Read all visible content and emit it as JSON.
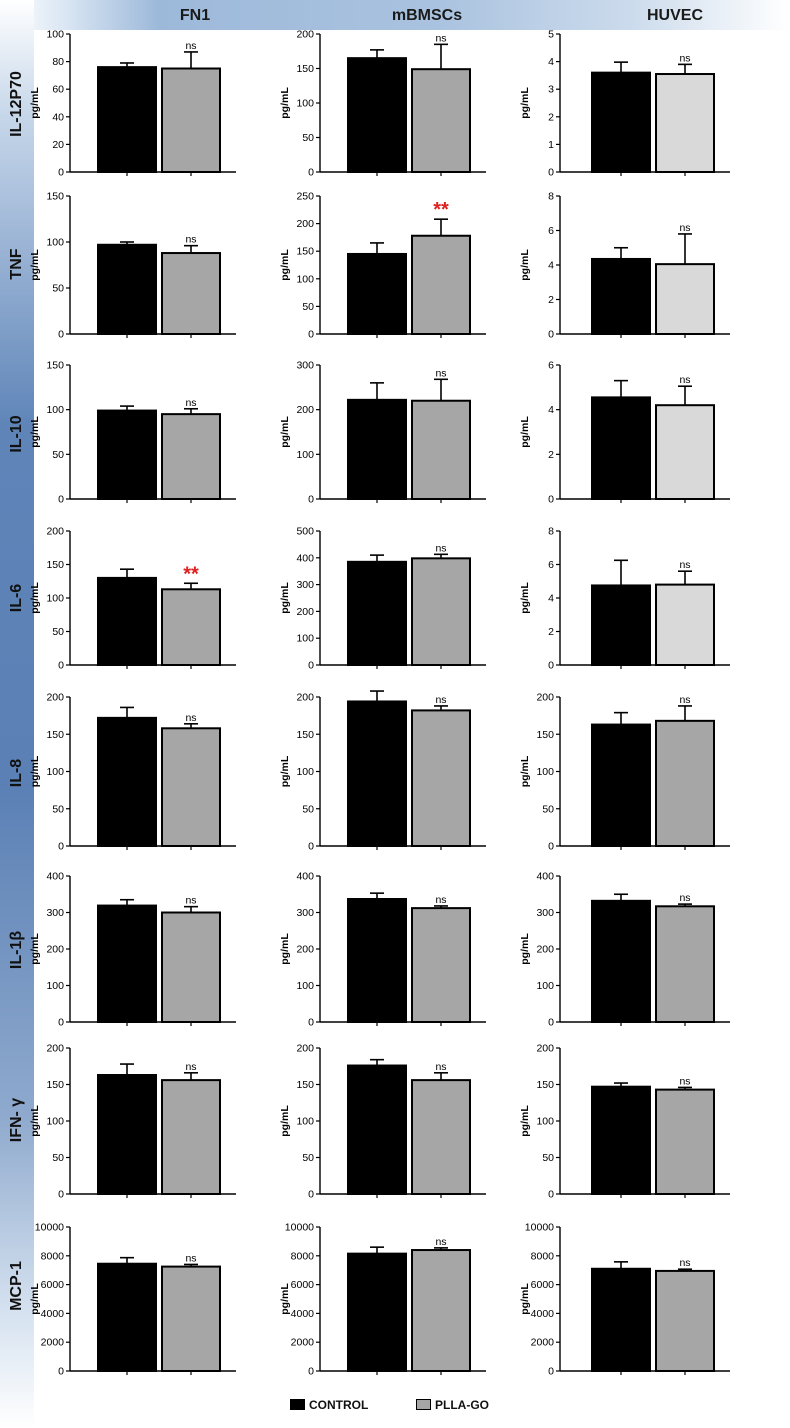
{
  "columns": [
    "FN1",
    "mBMSCs",
    "HUVEC"
  ],
  "rows": [
    "IL-12P70",
    "TNF",
    "IL-10",
    "IL-6",
    "IL-8",
    "IL-1β",
    "IFN- γ",
    "MCP-1"
  ],
  "ylabel": "pg/mL",
  "legend": {
    "control_label": "CONTROL",
    "control_color": "#000000",
    "pllago_label": "PLLA-GO",
    "pllago_color": "#a6a6a6",
    "pllago_color_light": "#d9d9d9"
  },
  "chart_data": [
    {
      "type": "bar",
      "row": "IL-12P70",
      "column": "FN1",
      "categories": [
        "CONTROL",
        "PLLA-GO"
      ],
      "values": [
        76,
        75
      ],
      "errors": [
        3,
        12
      ],
      "ylim": [
        0,
        100
      ],
      "yticks": [
        0,
        20,
        40,
        60,
        80,
        100
      ],
      "ylabel": "pg/mL",
      "annotation": "ns"
    },
    {
      "type": "bar",
      "row": "IL-12P70",
      "column": "mBMSCs",
      "categories": [
        "CONTROL",
        "PLLA-GO"
      ],
      "values": [
        165,
        149
      ],
      "errors": [
        12,
        36
      ],
      "ylim": [
        0,
        200
      ],
      "yticks": [
        0,
        50,
        100,
        150,
        200
      ],
      "ylabel": "pg/mL",
      "annotation": "ns"
    },
    {
      "type": "bar",
      "row": "IL-12P70",
      "column": "HUVEC",
      "categories": [
        "CONTROL",
        "PLLA-GO"
      ],
      "values": [
        3.6,
        3.55
      ],
      "errors": [
        0.38,
        0.35
      ],
      "ylim": [
        0,
        5
      ],
      "yticks": [
        0,
        1,
        2,
        3,
        4,
        5
      ],
      "ylabel": "pg/mL",
      "annotation": "ns"
    },
    {
      "type": "bar",
      "row": "TNF",
      "column": "FN1",
      "categories": [
        "CONTROL",
        "PLLA-GO"
      ],
      "values": [
        97,
        88
      ],
      "errors": [
        3,
        8
      ],
      "ylim": [
        0,
        150
      ],
      "yticks": [
        0,
        50,
        100,
        150
      ],
      "ylabel": "pg/mL",
      "annotation": "ns"
    },
    {
      "type": "bar",
      "row": "TNF",
      "column": "mBMSCs",
      "categories": [
        "CONTROL",
        "PLLA-GO"
      ],
      "values": [
        145,
        178
      ],
      "errors": [
        20,
        30
      ],
      "ylim": [
        0,
        250
      ],
      "yticks": [
        0,
        50,
        100,
        150,
        200,
        250
      ],
      "ylabel": "pg/mL",
      "annotation": "**"
    },
    {
      "type": "bar",
      "row": "TNF",
      "column": "HUVEC",
      "categories": [
        "CONTROL",
        "PLLA-GO"
      ],
      "values": [
        4.35,
        4.05
      ],
      "errors": [
        0.65,
        1.75
      ],
      "ylim": [
        0,
        8
      ],
      "yticks": [
        0,
        2,
        4,
        6,
        8
      ],
      "ylabel": "pg/mL",
      "annotation": "ns"
    },
    {
      "type": "bar",
      "row": "IL-10",
      "column": "FN1",
      "categories": [
        "CONTROL",
        "PLLA-GO"
      ],
      "values": [
        99,
        95
      ],
      "errors": [
        5,
        6
      ],
      "ylim": [
        0,
        150
      ],
      "yticks": [
        0,
        50,
        100,
        150
      ],
      "ylabel": "pg/mL",
      "annotation": "ns"
    },
    {
      "type": "bar",
      "row": "IL-10",
      "column": "mBMSCs",
      "categories": [
        "CONTROL",
        "PLLA-GO"
      ],
      "values": [
        222,
        220
      ],
      "errors": [
        38,
        48
      ],
      "ylim": [
        0,
        300
      ],
      "yticks": [
        0,
        100,
        200,
        300
      ],
      "ylabel": "pg/mL",
      "annotation": "ns"
    },
    {
      "type": "bar",
      "row": "IL-10",
      "column": "HUVEC",
      "categories": [
        "CONTROL",
        "PLLA-GO"
      ],
      "values": [
        4.55,
        4.2
      ],
      "errors": [
        0.75,
        0.85
      ],
      "ylim": [
        0,
        6
      ],
      "yticks": [
        0,
        2,
        4,
        6
      ],
      "ylabel": "pg/mL",
      "annotation": "ns"
    },
    {
      "type": "bar",
      "row": "IL-6",
      "column": "FN1",
      "categories": [
        "CONTROL",
        "PLLA-GO"
      ],
      "values": [
        130,
        113
      ],
      "errors": [
        13,
        9
      ],
      "ylim": [
        0,
        200
      ],
      "yticks": [
        0,
        50,
        100,
        150,
        200
      ],
      "ylabel": "pg/mL",
      "annotation": "**"
    },
    {
      "type": "bar",
      "row": "IL-6",
      "column": "mBMSCs",
      "categories": [
        "CONTROL",
        "PLLA-GO"
      ],
      "values": [
        385,
        398
      ],
      "errors": [
        25,
        15
      ],
      "ylim": [
        0,
        500
      ],
      "yticks": [
        0,
        100,
        200,
        300,
        400,
        500
      ],
      "ylabel": "pg/mL",
      "annotation": "ns"
    },
    {
      "type": "bar",
      "row": "IL-6",
      "column": "HUVEC",
      "categories": [
        "CONTROL",
        "PLLA-GO"
      ],
      "values": [
        4.75,
        4.8
      ],
      "errors": [
        1.5,
        0.8
      ],
      "ylim": [
        0,
        8
      ],
      "yticks": [
        0,
        2,
        4,
        6,
        8
      ],
      "ylabel": "pg/mL",
      "annotation": "ns"
    },
    {
      "type": "bar",
      "row": "IL-8",
      "column": "FN1",
      "categories": [
        "CONTROL",
        "PLLA-GO"
      ],
      "values": [
        172,
        158
      ],
      "errors": [
        14,
        6
      ],
      "ylim": [
        0,
        200
      ],
      "yticks": [
        0,
        50,
        100,
        150,
        200
      ],
      "ylabel": "pg/mL",
      "annotation": "ns"
    },
    {
      "type": "bar",
      "row": "IL-8",
      "column": "mBMSCs",
      "categories": [
        "CONTROL",
        "PLLA-GO"
      ],
      "values": [
        194,
        182
      ],
      "errors": [
        14,
        6
      ],
      "ylim": [
        0,
        200
      ],
      "yticks": [
        0,
        50,
        100,
        150,
        200
      ],
      "ylabel": "pg/mL",
      "annotation": "ns"
    },
    {
      "type": "bar",
      "row": "IL-8",
      "column": "HUVEC",
      "categories": [
        "CONTROL",
        "PLLA-GO"
      ],
      "values": [
        163,
        168
      ],
      "errors": [
        16,
        20
      ],
      "ylim": [
        0,
        200
      ],
      "yticks": [
        0,
        50,
        100,
        150,
        200
      ],
      "ylabel": "pg/mL",
      "annotation": "ns"
    },
    {
      "type": "bar",
      "row": "IL-1β",
      "column": "FN1",
      "categories": [
        "CONTROL",
        "PLLA-GO"
      ],
      "values": [
        319,
        300
      ],
      "errors": [
        16,
        16
      ],
      "ylim": [
        0,
        400
      ],
      "yticks": [
        0,
        100,
        200,
        300,
        400
      ],
      "ylabel": "pg/mL",
      "annotation": "ns"
    },
    {
      "type": "bar",
      "row": "IL-1β",
      "column": "mBMSCs",
      "categories": [
        "CONTROL",
        "PLLA-GO"
      ],
      "values": [
        337,
        312
      ],
      "errors": [
        16,
        6
      ],
      "ylim": [
        0,
        400
      ],
      "yticks": [
        0,
        100,
        200,
        300,
        400
      ],
      "ylabel": "pg/mL",
      "annotation": "ns"
    },
    {
      "type": "bar",
      "row": "IL-1β",
      "column": "HUVEC",
      "categories": [
        "CONTROL",
        "PLLA-GO"
      ],
      "values": [
        332,
        317
      ],
      "errors": [
        18,
        6
      ],
      "ylim": [
        0,
        400
      ],
      "yticks": [
        0,
        100,
        200,
        300,
        400
      ],
      "ylabel": "pg/mL",
      "annotation": "ns"
    },
    {
      "type": "bar",
      "row": "IFN- γ",
      "column": "FN1",
      "categories": [
        "CONTROL",
        "PLLA-GO"
      ],
      "values": [
        163,
        156
      ],
      "errors": [
        15,
        10
      ],
      "ylim": [
        0,
        200
      ],
      "yticks": [
        0,
        50,
        100,
        150,
        200
      ],
      "ylabel": "pg/mL",
      "annotation": "ns"
    },
    {
      "type": "bar",
      "row": "IFN- γ",
      "column": "mBMSCs",
      "categories": [
        "CONTROL",
        "PLLA-GO"
      ],
      "values": [
        176,
        156
      ],
      "errors": [
        8,
        10
      ],
      "ylim": [
        0,
        200
      ],
      "yticks": [
        0,
        50,
        100,
        150,
        200
      ],
      "ylabel": "pg/mL",
      "annotation": "ns"
    },
    {
      "type": "bar",
      "row": "IFN- γ",
      "column": "HUVEC",
      "categories": [
        "CONTROL",
        "PLLA-GO"
      ],
      "values": [
        147,
        143
      ],
      "errors": [
        5,
        3
      ],
      "ylim": [
        0,
        200
      ],
      "yticks": [
        0,
        50,
        100,
        150,
        200
      ],
      "ylabel": "pg/mL",
      "annotation": "ns"
    },
    {
      "type": "bar",
      "row": "MCP-1",
      "column": "FN1",
      "categories": [
        "CONTROL",
        "PLLA-GO"
      ],
      "values": [
        7450,
        7250
      ],
      "errors": [
        420,
        150
      ],
      "ylim": [
        0,
        10000
      ],
      "yticks": [
        0,
        2000,
        4000,
        6000,
        8000,
        10000
      ],
      "ylabel": "pg/mL",
      "annotation": "ns"
    },
    {
      "type": "bar",
      "row": "MCP-1",
      "column": "mBMSCs",
      "categories": [
        "CONTROL",
        "PLLA-GO"
      ],
      "values": [
        8150,
        8400
      ],
      "errors": [
        450,
        150
      ],
      "ylim": [
        0,
        10000
      ],
      "yticks": [
        0,
        2000,
        4000,
        6000,
        8000,
        10000
      ],
      "ylabel": "pg/mL",
      "annotation": "ns"
    },
    {
      "type": "bar",
      "row": "MCP-1",
      "column": "HUVEC",
      "categories": [
        "CONTROL",
        "PLLA-GO"
      ],
      "values": [
        7100,
        6950
      ],
      "errors": [
        480,
        120
      ],
      "ylim": [
        0,
        10000
      ],
      "yticks": [
        0,
        2000,
        4000,
        6000,
        8000,
        10000
      ],
      "ylabel": "pg/mL",
      "annotation": "ns"
    }
  ]
}
